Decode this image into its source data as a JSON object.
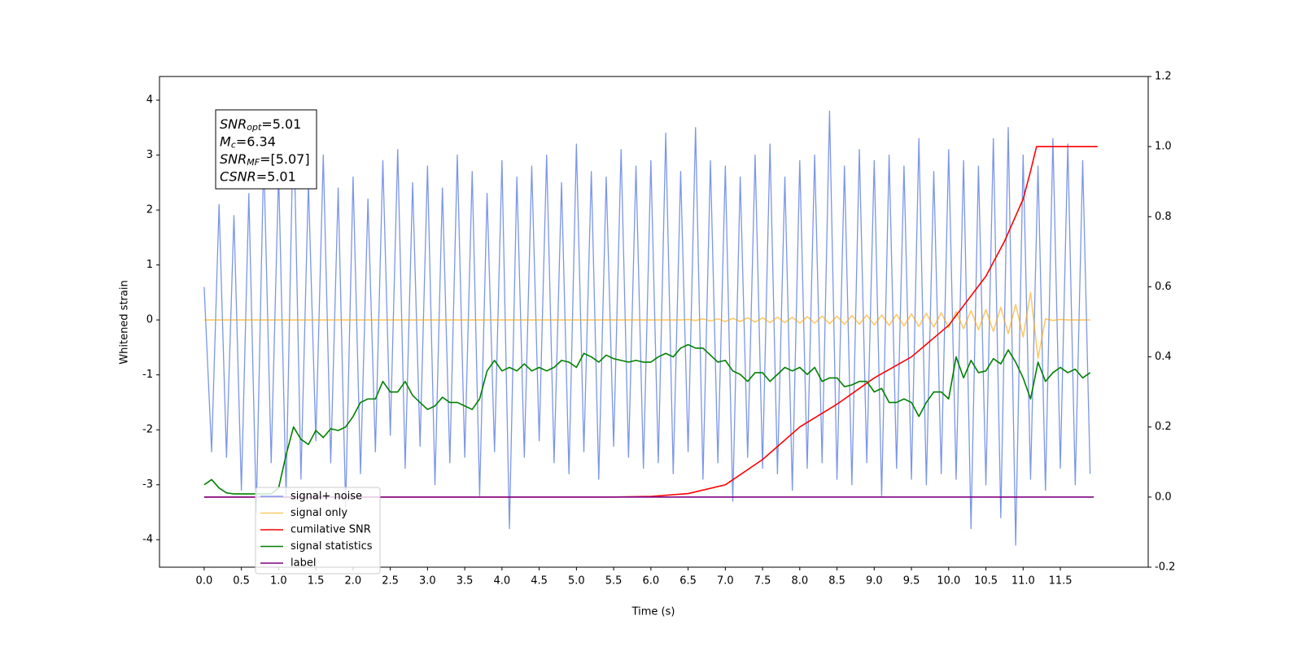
{
  "chart_data": {
    "type": "line",
    "xlabel": "Time (s)",
    "ylabel": "Whitened strain",
    "xlim": [
      -0.6,
      12.68
    ],
    "ylim": [
      -4.5,
      4.43
    ],
    "y2lim": [
      -0.2,
      1.2
    ],
    "xticks": [
      {
        "value": 0,
        "label": "0.0"
      },
      0.5,
      {
        "value": 1,
        "label": "1.0"
      },
      1.5,
      {
        "value": 2,
        "label": "2.0"
      },
      2.5,
      {
        "value": 3,
        "label": "3.0"
      },
      3.5,
      {
        "value": 4,
        "label": "4.0"
      },
      4.5,
      {
        "value": 5,
        "label": "5.0"
      },
      5.5,
      {
        "value": 6,
        "label": "6.0"
      },
      6.5,
      {
        "value": 7,
        "label": "7.0"
      },
      7.5,
      {
        "value": 8,
        "label": "8.0"
      },
      8.5,
      {
        "value": 9,
        "label": "9.0"
      },
      9.5,
      {
        "value": 10,
        "label": "10.0"
      },
      10.5,
      {
        "value": 11,
        "label": "11.0"
      },
      11.5
    ],
    "yticks": [
      -4,
      -3,
      -2,
      -1,
      0,
      1,
      2,
      3,
      4
    ],
    "y2ticks": [
      -0.2,
      {
        "value": 0,
        "label": "0.0"
      },
      0.2,
      0.4,
      0.6,
      0.8,
      {
        "value": 1,
        "label": "1.0"
      },
      1.2
    ],
    "annotation": [
      {
        "symbol": "SNR",
        "subscript": "opt",
        "text": "=5.01"
      },
      {
        "symbol": "M",
        "subscript": "c",
        "text": "=6.34"
      },
      {
        "symbol": "SNR",
        "subscript": "MF",
        "text": "=[5.07]"
      },
      {
        "symbol": "CSNR",
        "subscript": "",
        "text": "=5.01"
      }
    ],
    "x": [
      0,
      0.1,
      0.2,
      0.3,
      0.4,
      0.5,
      0.6,
      0.7,
      0.8,
      0.9,
      1,
      1.1,
      1.2,
      1.3,
      1.4,
      1.5,
      1.6,
      1.7,
      1.8,
      1.9,
      2,
      2.1,
      2.2,
      2.3,
      2.4,
      2.5,
      2.6,
      2.7,
      2.8,
      2.9,
      3,
      3.1,
      3.2,
      3.3,
      3.4,
      3.5,
      3.6,
      3.7,
      3.8,
      3.9,
      4,
      4.1,
      4.2,
      4.3,
      4.4,
      4.5,
      4.6,
      4.7,
      4.8,
      4.9,
      5,
      5.1,
      5.2,
      5.3,
      5.4,
      5.5,
      5.6,
      5.7,
      5.8,
      5.9,
      6,
      6.1,
      6.2,
      6.3,
      6.4,
      6.5,
      6.6,
      6.7,
      6.8,
      6.9,
      7,
      7.1,
      7.2,
      7.3,
      7.4,
      7.5,
      7.6,
      7.7,
      7.8,
      7.9,
      8,
      8.1,
      8.2,
      8.3,
      8.4,
      8.5,
      8.6,
      8.7,
      8.8,
      8.9,
      9,
      9.1,
      9.2,
      9.3,
      9.4,
      9.5,
      9.6,
      9.7,
      9.8,
      9.9,
      10,
      10.1,
      10.2,
      10.3,
      10.4,
      10.5,
      10.6,
      10.7,
      10.8,
      10.9,
      11,
      11.1,
      11.2,
      11.3,
      11.4,
      11.5,
      11.6,
      11.7,
      11.8,
      11.9
    ],
    "series": [
      {
        "name": "signal+ noise",
        "color": "#7b96e8",
        "axis": "y",
        "values": [
          0.6,
          -2.4,
          2.1,
          -2.5,
          1.9,
          -3.1,
          2.3,
          -3.5,
          3.0,
          -2.6,
          2.7,
          -3.2,
          3.8,
          -2.9,
          2.5,
          -2.2,
          3.0,
          -2.6,
          2.4,
          -3.4,
          2.6,
          -2.8,
          2.2,
          -2.4,
          2.9,
          -2.1,
          3.1,
          -2.7,
          2.5,
          -2.3,
          2.8,
          -3.0,
          2.4,
          -2.6,
          3.0,
          -2.5,
          2.7,
          -3.2,
          2.3,
          -2.4,
          2.9,
          -3.8,
          2.6,
          -2.5,
          2.8,
          -2.2,
          3.0,
          -2.6,
          2.5,
          -2.8,
          3.2,
          -2.4,
          2.7,
          -2.9,
          2.6,
          -2.3,
          3.1,
          -2.5,
          2.8,
          -2.7,
          2.9,
          -2.6,
          3.4,
          -2.8,
          2.7,
          -2.4,
          3.5,
          -2.9,
          2.9,
          -2.6,
          2.8,
          -3.3,
          2.6,
          -2.5,
          3.0,
          -2.7,
          3.2,
          -2.8,
          2.6,
          -3.1,
          2.9,
          -2.7,
          3.0,
          -2.6,
          3.8,
          -2.9,
          2.8,
          -3.0,
          3.1,
          -2.6,
          2.9,
          -3.2,
          3.0,
          -2.7,
          2.8,
          -2.9,
          3.3,
          -3.0,
          2.7,
          -2.8,
          3.1,
          -2.9,
          2.9,
          -3.8,
          2.8,
          -3.0,
          3.3,
          -3.6,
          3.5,
          -4.1,
          3.0,
          -2.9,
          2.8,
          -3.1,
          3.3,
          -2.7,
          3.2,
          -3.0,
          2.9,
          -2.8
        ]
      },
      {
        "name": "signal only",
        "color": "#ffa500",
        "axis": "y",
        "values": [
          0,
          0,
          0,
          0,
          0,
          0,
          0,
          0,
          0,
          0,
          0,
          0,
          0,
          0,
          0,
          0,
          0,
          0,
          0,
          0,
          0,
          0,
          0,
          0,
          0,
          0,
          0,
          0,
          0,
          0,
          0,
          0,
          0,
          0,
          0,
          0,
          0,
          0,
          0,
          0,
          0,
          0,
          0,
          0,
          0,
          0,
          0,
          0,
          0,
          0,
          0,
          0,
          0,
          0,
          0,
          0,
          0,
          0,
          0,
          0,
          0,
          0,
          0,
          0,
          0,
          0.01,
          -0.01,
          0.02,
          -0.02,
          0.02,
          -0.03,
          0.03,
          -0.03,
          0.04,
          -0.04,
          0.04,
          -0.05,
          0.05,
          -0.05,
          0.05,
          -0.06,
          0.06,
          -0.06,
          0.07,
          -0.07,
          0.07,
          -0.08,
          0.08,
          -0.08,
          0.09,
          -0.09,
          0.09,
          -0.1,
          0.1,
          -0.11,
          0.11,
          -0.12,
          0.12,
          -0.13,
          0.13,
          -0.14,
          0.15,
          -0.16,
          0.17,
          -0.18,
          0.19,
          -0.21,
          0.23,
          -0.25,
          0.28,
          -0.31,
          0.5,
          -0.7,
          0.02,
          -0.01,
          0.01,
          0,
          0,
          0,
          0
        ]
      },
      {
        "name": "cumilative SNR",
        "color": "#ff0000",
        "axis": "y2",
        "x": [
          0,
          5.5,
          6.0,
          6.5,
          7.0,
          7.5,
          8.0,
          8.5,
          9.0,
          9.5,
          10.0,
          10.5,
          10.75,
          11.0,
          11.1,
          11.18,
          12.0
        ],
        "values": [
          0,
          0,
          0.002,
          0.01,
          0.035,
          0.107,
          0.2,
          0.265,
          0.34,
          0.4,
          0.49,
          0.63,
          0.73,
          0.85,
          0.93,
          1.0,
          1.0
        ]
      },
      {
        "name": "signal statistics",
        "color": "#008000",
        "axis": "y2",
        "values": [
          0.035,
          0.05,
          0.026,
          0.012,
          0.009,
          0.009,
          0.009,
          0.009,
          0.009,
          0.009,
          0.026,
          0.12,
          0.2,
          0.165,
          0.15,
          0.19,
          0.17,
          0.195,
          0.19,
          0.2,
          0.23,
          0.27,
          0.28,
          0.28,
          0.33,
          0.3,
          0.3,
          0.33,
          0.29,
          0.27,
          0.25,
          0.26,
          0.285,
          0.27,
          0.27,
          0.26,
          0.25,
          0.28,
          0.36,
          0.39,
          0.36,
          0.37,
          0.36,
          0.38,
          0.36,
          0.37,
          0.36,
          0.37,
          0.39,
          0.385,
          0.37,
          0.41,
          0.4,
          0.385,
          0.405,
          0.395,
          0.39,
          0.385,
          0.39,
          0.385,
          0.385,
          0.4,
          0.41,
          0.4,
          0.425,
          0.435,
          0.425,
          0.425,
          0.405,
          0.385,
          0.39,
          0.36,
          0.35,
          0.33,
          0.355,
          0.355,
          0.33,
          0.35,
          0.37,
          0.36,
          0.37,
          0.35,
          0.37,
          0.33,
          0.34,
          0.34,
          0.315,
          0.32,
          0.33,
          0.33,
          0.3,
          0.31,
          0.27,
          0.27,
          0.28,
          0.27,
          0.23,
          0.27,
          0.3,
          0.3,
          0.28,
          0.4,
          0.34,
          0.39,
          0.355,
          0.36,
          0.395,
          0.38,
          0.42,
          0.385,
          0.34,
          0.28,
          0.385,
          0.33,
          0.355,
          0.37,
          0.355,
          0.365,
          0.34,
          0.355
        ]
      },
      {
        "name": "label",
        "color": "#800080",
        "axis": "y2",
        "x": [
          0,
          11.95
        ],
        "values": [
          0,
          0
        ]
      }
    ]
  }
}
